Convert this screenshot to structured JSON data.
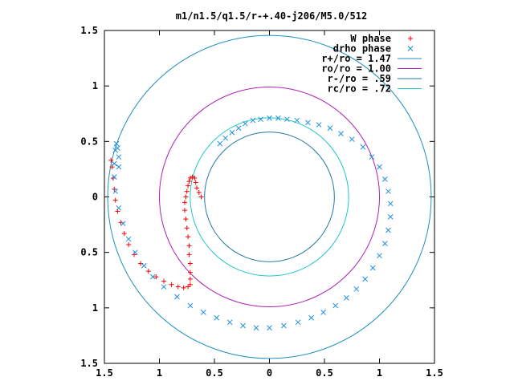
{
  "chart_data": {
    "type": "scatter",
    "title": "m1/n1.5/q1.5/r-+.40-j206/M5.0/512",
    "xlim": [
      -1.5,
      1.5
    ],
    "ylim": [
      -1.5,
      1.5
    ],
    "x_ticks": [
      -1.5,
      -1,
      -0.5,
      0,
      0.5,
      1,
      1.5
    ],
    "x_tick_labels": [
      "1.5",
      "1",
      "0.5",
      "0",
      "0.5",
      "1",
      "1.5"
    ],
    "y_ticks": [
      1.5,
      1,
      0.5,
      0,
      -0.5,
      -1,
      -1.5
    ],
    "y_tick_labels": [
      "1.5",
      "1",
      "0.5",
      "0",
      "0.5",
      "1",
      "1.5"
    ],
    "grid": false,
    "legend_position": "top-right",
    "series": [
      {
        "name": "W phase",
        "marker": "plus",
        "color": "#ff0000",
        "points": [
          [
            -0.62,
            0
          ],
          [
            -0.64,
            0.04
          ],
          [
            -0.66,
            0.08
          ],
          [
            -0.67,
            0.13
          ],
          [
            -0.68,
            0.17
          ],
          [
            -0.7,
            0.18
          ],
          [
            -0.72,
            0.17
          ],
          [
            -0.73,
            0.14
          ],
          [
            -0.74,
            0.1
          ],
          [
            -0.75,
            0.05
          ],
          [
            -0.76,
            0
          ],
          [
            -0.77,
            -0.05
          ],
          [
            -0.77,
            -0.12
          ],
          [
            -0.76,
            -0.2
          ],
          [
            -0.75,
            -0.28
          ],
          [
            -0.74,
            -0.36
          ],
          [
            -0.73,
            -0.44
          ],
          [
            -0.73,
            -0.52
          ],
          [
            -0.72,
            -0.6
          ],
          [
            -0.72,
            -0.68
          ],
          [
            -0.72,
            -0.74
          ],
          [
            -0.72,
            -0.79
          ],
          [
            -0.74,
            -0.81
          ],
          [
            -0.78,
            -0.82
          ],
          [
            -0.83,
            -0.81
          ],
          [
            -0.89,
            -0.79
          ],
          [
            -0.96,
            -0.76
          ],
          [
            -1.03,
            -0.72
          ],
          [
            -1.1,
            -0.67
          ],
          [
            -1.17,
            -0.6
          ],
          [
            -1.23,
            -0.52
          ],
          [
            -1.28,
            -0.43
          ],
          [
            -1.32,
            -0.33
          ],
          [
            -1.35,
            -0.23
          ],
          [
            -1.38,
            -0.13
          ],
          [
            -1.4,
            -0.03
          ],
          [
            -1.41,
            0.07
          ],
          [
            -1.42,
            0.17
          ],
          [
            -1.43,
            0.27
          ],
          [
            -1.44,
            0.33
          ]
        ]
      },
      {
        "name": "drho phase",
        "marker": "cross",
        "color": "#1e90e0",
        "points": [
          [
            -0.45,
            0.48
          ],
          [
            -0.4,
            0.53
          ],
          [
            -0.34,
            0.58
          ],
          [
            -0.28,
            0.62
          ],
          [
            -0.22,
            0.66
          ],
          [
            -0.15,
            0.69
          ],
          [
            -0.08,
            0.7
          ],
          [
            0,
            0.71
          ],
          [
            0.08,
            0.71
          ],
          [
            0.16,
            0.7
          ],
          [
            0.25,
            0.69
          ],
          [
            0.35,
            0.67
          ],
          [
            0.45,
            0.65
          ],
          [
            0.55,
            0.62
          ],
          [
            0.65,
            0.57
          ],
          [
            0.75,
            0.52
          ],
          [
            0.85,
            0.45
          ],
          [
            0.93,
            0.36
          ],
          [
            1,
            0.27
          ],
          [
            1.05,
            0.16
          ],
          [
            1.08,
            0.05
          ],
          [
            1.1,
            -0.06
          ],
          [
            1.1,
            -0.18
          ],
          [
            1.08,
            -0.3
          ],
          [
            1.05,
            -0.42
          ],
          [
            1,
            -0.53
          ],
          [
            0.94,
            -0.64
          ],
          [
            0.87,
            -0.74
          ],
          [
            0.79,
            -0.83
          ],
          [
            0.7,
            -0.91
          ],
          [
            0.6,
            -0.98
          ],
          [
            0.49,
            -1.04
          ],
          [
            0.38,
            -1.09
          ],
          [
            0.26,
            -1.13
          ],
          [
            0.13,
            -1.16
          ],
          [
            0,
            -1.18
          ],
          [
            -0.12,
            -1.18
          ],
          [
            -0.24,
            -1.16
          ],
          [
            -0.36,
            -1.13
          ],
          [
            -0.48,
            -1.09
          ],
          [
            -0.6,
            -1.04
          ],
          [
            -0.72,
            -0.98
          ],
          [
            -0.84,
            -0.9
          ],
          [
            -0.96,
            -0.81
          ],
          [
            -1.06,
            -0.72
          ],
          [
            -1.14,
            -0.62
          ],
          [
            -1.22,
            -0.5
          ],
          [
            -1.28,
            -0.38
          ],
          [
            -1.33,
            -0.24
          ],
          [
            -1.37,
            -0.1
          ],
          [
            -1.4,
            0.05
          ],
          [
            -1.41,
            0.18
          ],
          [
            -1.41,
            0.3
          ],
          [
            -1.4,
            0.42
          ],
          [
            -1.39,
            0.48
          ],
          [
            -1.38,
            0.44
          ],
          [
            -1.37,
            0.36
          ],
          [
            -1.37,
            0.27
          ]
        ]
      }
    ],
    "circles": [
      {
        "name": "r+/ro = 1.47",
        "radius": 1.47,
        "color": "#1f8fc0"
      },
      {
        "name": "ro/ro = 1.00",
        "radius": 1.0,
        "color": "#b020b8"
      },
      {
        "name": "r-/ro = .59",
        "radius": 0.59,
        "color": "#1f78a8"
      },
      {
        "name": "rc/ro = .72",
        "radius": 0.72,
        "color": "#20c8c8"
      }
    ]
  }
}
